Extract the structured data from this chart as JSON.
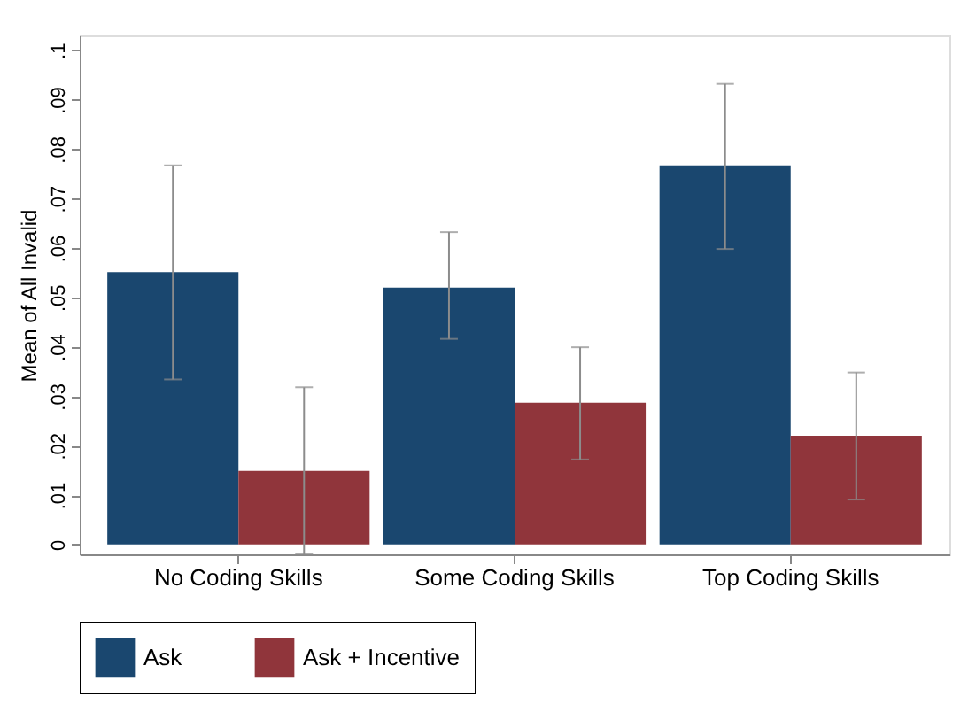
{
  "chart_data": {
    "type": "bar",
    "ylabel": "Mean of All Invalid",
    "categories": [
      "No Coding Skills",
      "Some Coding Skills",
      "Top Coding Skills"
    ],
    "series": [
      {
        "name": "Ask",
        "color": "#1a476f",
        "values": [
          0.0551,
          0.052,
          0.0767
        ],
        "errors": [
          [
            0.0334,
            0.0767
          ],
          [
            0.0416,
            0.0632
          ],
          [
            0.0598,
            0.0932
          ]
        ]
      },
      {
        "name": "Ask + Incentive",
        "color": "#90353b",
        "values": [
          0.0149,
          0.0287,
          0.022
        ],
        "errors": [
          [
            -0.002,
            0.0318
          ],
          [
            0.0172,
            0.0399
          ],
          [
            0.0091,
            0.0348
          ]
        ]
      }
    ],
    "ylim": [
      -0.002,
      0.103
    ],
    "yticks": [
      0,
      {
        "value": 0.01,
        "label": ".01"
      },
      {
        "value": 0.02,
        "label": ".02"
      },
      {
        "value": 0.03,
        "label": ".03"
      },
      {
        "value": 0.04,
        "label": ".04"
      },
      {
        "value": 0.05,
        "label": ".05"
      },
      {
        "value": 0.06,
        "label": ".06"
      },
      {
        "value": 0.07,
        "label": ".07"
      },
      {
        "value": 0.08,
        "label": ".08"
      },
      {
        "value": 0.09,
        "label": ".09"
      },
      {
        "value": 0.1,
        "label": ".1"
      }
    ],
    "grid": false,
    "legend": "bottom"
  }
}
